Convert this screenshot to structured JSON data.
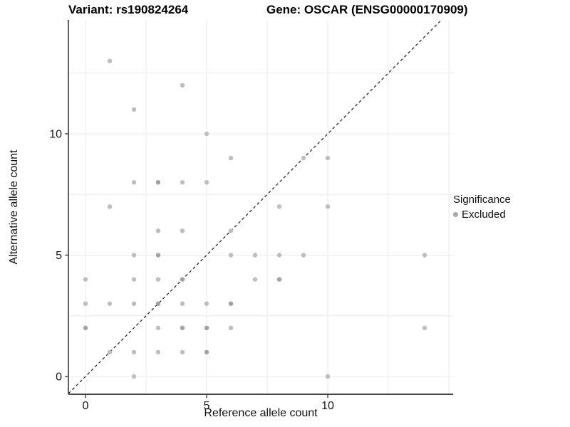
{
  "titles": {
    "variant": "Variant: rs190824264",
    "gene": "Gene: OSCAR (ENSG00000170909)"
  },
  "legend": {
    "title": "Significance",
    "items": [
      {
        "label": "Excluded",
        "color": "#a9a9a9"
      }
    ]
  },
  "colors": {
    "background": "#ffffff",
    "gridline": "#ebebeb",
    "axis_line": "#2a2a2a",
    "tick_mark": "#333333",
    "tick_text": "#1a1a1a",
    "point": "#bebebe",
    "point_overplotted": "#a2a2a2",
    "identity_line": "#1a1a1a"
  },
  "chart_data": {
    "type": "scatter",
    "title": "",
    "xlabel": "Reference allele count",
    "ylabel": "Alternative allele count",
    "x_ticks": [
      0,
      5,
      10
    ],
    "y_ticks": [
      0,
      5,
      10
    ],
    "xlim": [
      -0.7,
      15.2
    ],
    "ylim": [
      -0.73,
      14.7
    ],
    "grid": true,
    "minor_grid_step": 2.5,
    "legend_position": "right",
    "identity_line": {
      "style": "dashed",
      "x1": -0.7,
      "y1": -0.7,
      "x2": 14.7,
      "y2": 14.7
    },
    "series": [
      {
        "name": "Excluded",
        "points": [
          [
            0,
            2,
            1
          ],
          [
            0,
            3,
            0
          ],
          [
            0,
            4,
            0
          ],
          [
            1,
            1,
            0
          ],
          [
            1,
            3,
            0
          ],
          [
            1,
            7,
            0
          ],
          [
            1,
            13,
            0
          ],
          [
            2,
            0,
            0
          ],
          [
            2,
            1,
            0
          ],
          [
            2,
            3,
            0
          ],
          [
            2,
            4,
            0
          ],
          [
            2,
            5,
            0
          ],
          [
            2,
            8,
            0
          ],
          [
            2,
            11,
            0
          ],
          [
            3,
            1,
            0
          ],
          [
            3,
            2,
            0
          ],
          [
            3,
            3,
            1
          ],
          [
            3,
            4,
            0
          ],
          [
            3,
            5,
            1
          ],
          [
            3,
            6,
            0
          ],
          [
            3,
            8,
            1
          ],
          [
            4,
            1,
            0
          ],
          [
            4,
            2,
            1
          ],
          [
            4,
            3,
            0
          ],
          [
            4,
            4,
            1
          ],
          [
            4,
            6,
            0
          ],
          [
            4,
            8,
            0
          ],
          [
            4,
            12,
            0
          ],
          [
            5,
            1,
            1
          ],
          [
            5,
            2,
            1
          ],
          [
            5,
            3,
            0
          ],
          [
            5,
            8,
            0
          ],
          [
            5,
            10,
            0
          ],
          [
            6,
            2,
            0
          ],
          [
            6,
            3,
            1
          ],
          [
            6,
            5,
            0
          ],
          [
            6,
            6,
            0
          ],
          [
            6,
            9,
            0
          ],
          [
            7,
            4,
            0
          ],
          [
            7,
            5,
            0
          ],
          [
            8,
            4,
            1
          ],
          [
            8,
            5,
            0
          ],
          [
            8,
            7,
            0
          ],
          [
            9,
            5,
            0
          ],
          [
            9,
            9,
            0
          ],
          [
            10,
            0,
            0
          ],
          [
            10,
            7,
            0
          ],
          [
            10,
            9,
            0
          ],
          [
            14,
            2,
            0
          ],
          [
            14,
            5,
            0
          ]
        ]
      }
    ]
  }
}
